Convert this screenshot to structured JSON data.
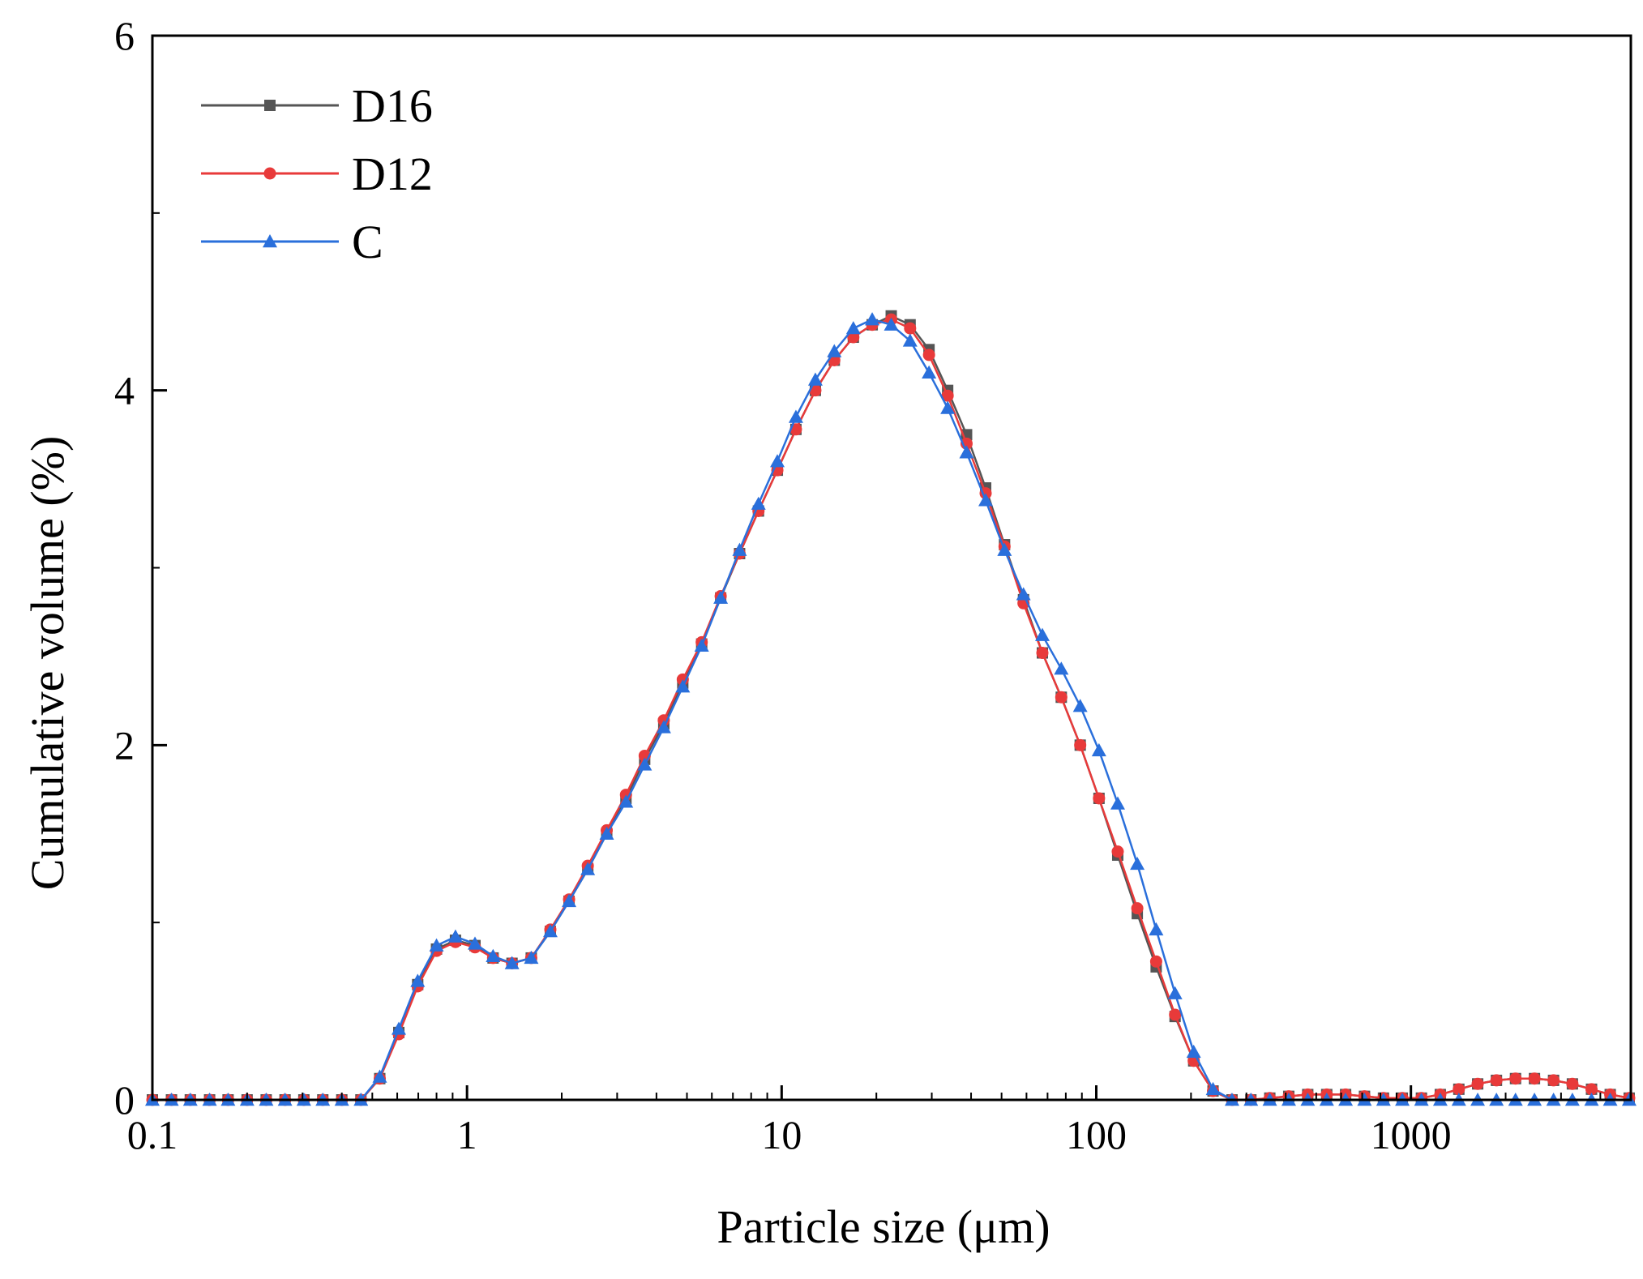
{
  "chart_data": {
    "type": "line",
    "title": "",
    "xlabel": "Particle size (μm)",
    "ylabel": "Cumulative volume (%)",
    "x_scale": "log",
    "xlim": [
      0.1,
      5000
    ],
    "ylim": [
      0,
      6
    ],
    "x_ticks": [
      0.1,
      1,
      10,
      100,
      1000
    ],
    "x_tick_labels": [
      "0.1",
      "1",
      "10",
      "100",
      "1000"
    ],
    "y_ticks": [
      0,
      2,
      4,
      6
    ],
    "y_tick_labels": [
      "0",
      "2",
      "4",
      "6"
    ],
    "legend_position": "top-left",
    "series": [
      {
        "name": "D16",
        "color": "#555555",
        "marker": "square",
        "points": [
          [
            0.1,
            0
          ],
          [
            0.115,
            0
          ],
          [
            0.132,
            0
          ],
          [
            0.152,
            0
          ],
          [
            0.174,
            0
          ],
          [
            0.2,
            0
          ],
          [
            0.23,
            0
          ],
          [
            0.264,
            0
          ],
          [
            0.303,
            0
          ],
          [
            0.348,
            0
          ],
          [
            0.4,
            0
          ],
          [
            0.46,
            0
          ],
          [
            0.528,
            0.12
          ],
          [
            0.607,
            0.38
          ],
          [
            0.697,
            0.65
          ],
          [
            0.8,
            0.85
          ],
          [
            0.919,
            0.9
          ],
          [
            1.06,
            0.87
          ],
          [
            1.21,
            0.8
          ],
          [
            1.39,
            0.77
          ],
          [
            1.6,
            0.8
          ],
          [
            1.84,
            0.95
          ],
          [
            2.11,
            1.12
          ],
          [
            2.42,
            1.3
          ],
          [
            2.78,
            1.5
          ],
          [
            3.2,
            1.7
          ],
          [
            3.67,
            1.92
          ],
          [
            4.22,
            2.12
          ],
          [
            4.85,
            2.35
          ],
          [
            5.57,
            2.57
          ],
          [
            6.4,
            2.83
          ],
          [
            7.35,
            3.08
          ],
          [
            8.44,
            3.32
          ],
          [
            9.69,
            3.55
          ],
          [
            11.1,
            3.78
          ],
          [
            12.8,
            4.0
          ],
          [
            14.7,
            4.17
          ],
          [
            16.9,
            4.3
          ],
          [
            19.4,
            4.37
          ],
          [
            22.3,
            4.42
          ],
          [
            25.6,
            4.37
          ],
          [
            29.4,
            4.23
          ],
          [
            33.7,
            4.0
          ],
          [
            38.7,
            3.75
          ],
          [
            44.5,
            3.45
          ],
          [
            51.1,
            3.13
          ],
          [
            58.7,
            2.82
          ],
          [
            67.4,
            2.52
          ],
          [
            77.4,
            2.27
          ],
          [
            88.9,
            2.0
          ],
          [
            102,
            1.7
          ],
          [
            117,
            1.38
          ],
          [
            135,
            1.05
          ],
          [
            155,
            0.75
          ],
          [
            178,
            0.47
          ],
          [
            204,
            0.22
          ],
          [
            235,
            0.05
          ],
          [
            270,
            0
          ],
          [
            310,
            0
          ],
          [
            356,
            0.01
          ],
          [
            409,
            0.02
          ],
          [
            470,
            0.03
          ],
          [
            540,
            0.03
          ],
          [
            620,
            0.03
          ],
          [
            712,
            0.02
          ],
          [
            818,
            0.01
          ],
          [
            939,
            0.01
          ],
          [
            1080,
            0.01
          ],
          [
            1240,
            0.03
          ],
          [
            1420,
            0.06
          ],
          [
            1630,
            0.09
          ],
          [
            1870,
            0.11
          ],
          [
            2150,
            0.12
          ],
          [
            2470,
            0.12
          ],
          [
            2840,
            0.11
          ],
          [
            3260,
            0.09
          ],
          [
            3750,
            0.06
          ],
          [
            4300,
            0.03
          ],
          [
            4940,
            0.01
          ]
        ]
      },
      {
        "name": "D12",
        "color": "#e83a3a",
        "marker": "circle",
        "points": [
          [
            0.1,
            0
          ],
          [
            0.115,
            0
          ],
          [
            0.132,
            0
          ],
          [
            0.152,
            0
          ],
          [
            0.174,
            0
          ],
          [
            0.2,
            0
          ],
          [
            0.23,
            0
          ],
          [
            0.264,
            0
          ],
          [
            0.303,
            0
          ],
          [
            0.348,
            0
          ],
          [
            0.4,
            0
          ],
          [
            0.46,
            0
          ],
          [
            0.528,
            0.12
          ],
          [
            0.607,
            0.37
          ],
          [
            0.697,
            0.64
          ],
          [
            0.8,
            0.84
          ],
          [
            0.919,
            0.89
          ],
          [
            1.06,
            0.86
          ],
          [
            1.21,
            0.8
          ],
          [
            1.39,
            0.77
          ],
          [
            1.6,
            0.8
          ],
          [
            1.84,
            0.96
          ],
          [
            2.11,
            1.13
          ],
          [
            2.42,
            1.32
          ],
          [
            2.78,
            1.52
          ],
          [
            3.2,
            1.72
          ],
          [
            3.67,
            1.94
          ],
          [
            4.22,
            2.14
          ],
          [
            4.85,
            2.37
          ],
          [
            5.57,
            2.58
          ],
          [
            6.4,
            2.84
          ],
          [
            7.35,
            3.08
          ],
          [
            8.44,
            3.32
          ],
          [
            9.69,
            3.55
          ],
          [
            11.1,
            3.78
          ],
          [
            12.8,
            4.0
          ],
          [
            14.7,
            4.17
          ],
          [
            16.9,
            4.3
          ],
          [
            19.4,
            4.37
          ],
          [
            22.3,
            4.4
          ],
          [
            25.6,
            4.35
          ],
          [
            29.4,
            4.2
          ],
          [
            33.7,
            3.97
          ],
          [
            38.7,
            3.7
          ],
          [
            44.5,
            3.42
          ],
          [
            51.1,
            3.12
          ],
          [
            58.7,
            2.8
          ],
          [
            67.4,
            2.52
          ],
          [
            77.4,
            2.27
          ],
          [
            88.9,
            2.0
          ],
          [
            102,
            1.7
          ],
          [
            117,
            1.4
          ],
          [
            135,
            1.08
          ],
          [
            155,
            0.78
          ],
          [
            178,
            0.48
          ],
          [
            204,
            0.22
          ],
          [
            235,
            0.05
          ],
          [
            270,
            0
          ],
          [
            310,
            0
          ],
          [
            356,
            0.01
          ],
          [
            409,
            0.02
          ],
          [
            470,
            0.03
          ],
          [
            540,
            0.03
          ],
          [
            620,
            0.03
          ],
          [
            712,
            0.02
          ],
          [
            818,
            0.01
          ],
          [
            939,
            0.01
          ],
          [
            1080,
            0.01
          ],
          [
            1240,
            0.03
          ],
          [
            1420,
            0.06
          ],
          [
            1630,
            0.09
          ],
          [
            1870,
            0.11
          ],
          [
            2150,
            0.12
          ],
          [
            2470,
            0.12
          ],
          [
            2840,
            0.11
          ],
          [
            3260,
            0.09
          ],
          [
            3750,
            0.06
          ],
          [
            4300,
            0.03
          ],
          [
            4940,
            0.01
          ]
        ]
      },
      {
        "name": "C",
        "color": "#2a6fdb",
        "marker": "triangle",
        "points": [
          [
            0.1,
            0
          ],
          [
            0.115,
            0
          ],
          [
            0.132,
            0
          ],
          [
            0.152,
            0
          ],
          [
            0.174,
            0
          ],
          [
            0.2,
            0
          ],
          [
            0.23,
            0
          ],
          [
            0.264,
            0
          ],
          [
            0.303,
            0
          ],
          [
            0.348,
            0
          ],
          [
            0.4,
            0
          ],
          [
            0.46,
            0
          ],
          [
            0.528,
            0.13
          ],
          [
            0.607,
            0.4
          ],
          [
            0.697,
            0.67
          ],
          [
            0.8,
            0.87
          ],
          [
            0.919,
            0.92
          ],
          [
            1.06,
            0.88
          ],
          [
            1.21,
            0.81
          ],
          [
            1.39,
            0.77
          ],
          [
            1.6,
            0.8
          ],
          [
            1.84,
            0.95
          ],
          [
            2.11,
            1.12
          ],
          [
            2.42,
            1.3
          ],
          [
            2.78,
            1.5
          ],
          [
            3.2,
            1.68
          ],
          [
            3.67,
            1.89
          ],
          [
            4.22,
            2.1
          ],
          [
            4.85,
            2.33
          ],
          [
            5.57,
            2.56
          ],
          [
            6.4,
            2.83
          ],
          [
            7.35,
            3.1
          ],
          [
            8.44,
            3.36
          ],
          [
            9.69,
            3.6
          ],
          [
            11.1,
            3.85
          ],
          [
            12.8,
            4.06
          ],
          [
            14.7,
            4.22
          ],
          [
            16.9,
            4.35
          ],
          [
            19.4,
            4.4
          ],
          [
            22.3,
            4.37
          ],
          [
            25.6,
            4.28
          ],
          [
            29.4,
            4.1
          ],
          [
            33.7,
            3.9
          ],
          [
            38.7,
            3.65
          ],
          [
            44.5,
            3.38
          ],
          [
            51.1,
            3.1
          ],
          [
            58.7,
            2.85
          ],
          [
            67.4,
            2.62
          ],
          [
            77.4,
            2.43
          ],
          [
            88.9,
            2.22
          ],
          [
            102,
            1.97
          ],
          [
            117,
            1.67
          ],
          [
            135,
            1.33
          ],
          [
            155,
            0.96
          ],
          [
            178,
            0.6
          ],
          [
            204,
            0.27
          ],
          [
            235,
            0.06
          ],
          [
            270,
            0
          ],
          [
            310,
            0
          ],
          [
            356,
            0
          ],
          [
            409,
            0
          ],
          [
            470,
            0
          ],
          [
            540,
            0
          ],
          [
            620,
            0
          ],
          [
            712,
            0
          ],
          [
            818,
            0
          ],
          [
            939,
            0
          ],
          [
            1080,
            0
          ],
          [
            1240,
            0
          ],
          [
            1420,
            0
          ],
          [
            1630,
            0
          ],
          [
            1870,
            0
          ],
          [
            2150,
            0
          ],
          [
            2470,
            0
          ],
          [
            2840,
            0
          ],
          [
            3260,
            0
          ],
          [
            3750,
            0
          ],
          [
            4300,
            0
          ],
          [
            4940,
            0
          ]
        ]
      }
    ]
  }
}
